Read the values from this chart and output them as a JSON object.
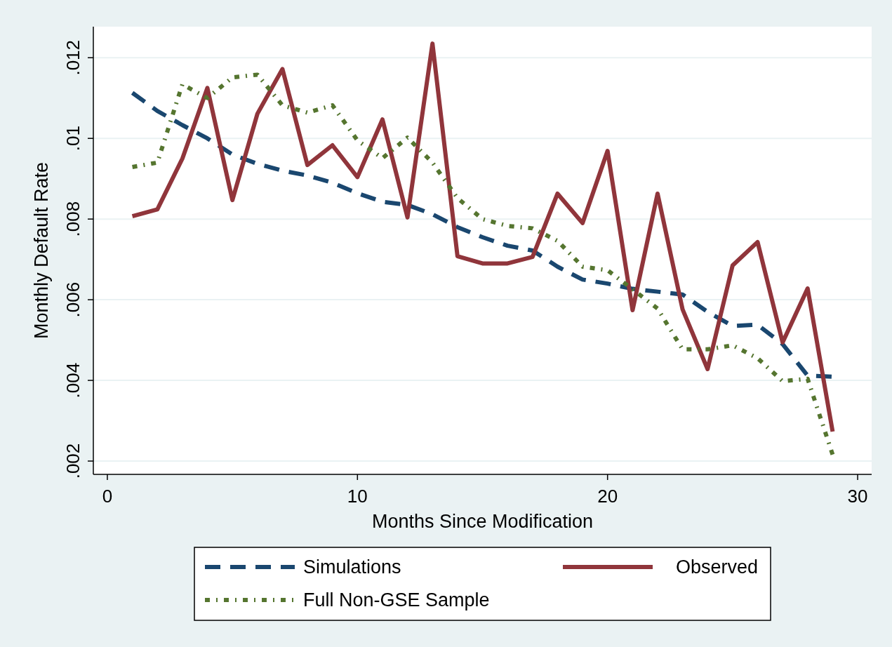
{
  "chart_data": {
    "type": "line",
    "xlabel": "Months Since Modification",
    "ylabel": "Monthly Default Rate",
    "x": [
      1,
      2,
      3,
      4,
      5,
      6,
      7,
      8,
      9,
      10,
      11,
      12,
      13,
      14,
      15,
      16,
      17,
      18,
      19,
      20,
      21,
      22,
      23,
      24,
      25,
      26,
      27,
      28,
      29
    ],
    "series": [
      {
        "name": "Simulations",
        "color": "#1a476f",
        "line_style": "dashed",
        "values": [
          0.01113,
          0.01068,
          0.01033,
          0.01,
          0.0096,
          0.00937,
          0.0092,
          0.00908,
          0.0089,
          0.00864,
          0.00843,
          0.00835,
          0.00812,
          0.0078,
          0.00755,
          0.00734,
          0.00722,
          0.00682,
          0.0065,
          0.0064,
          0.00627,
          0.0062,
          0.00613,
          0.0057,
          0.00535,
          0.00538,
          0.0049,
          0.00412,
          0.00409
        ]
      },
      {
        "name": "Observed",
        "color": "#90353b",
        "line_style": "solid",
        "values": [
          0.00807,
          0.00824,
          0.0095,
          0.01125,
          0.00847,
          0.01061,
          0.01172,
          0.00934,
          0.00983,
          0.00904,
          0.01047,
          0.00804,
          0.01235,
          0.00708,
          0.0069,
          0.0069,
          0.00706,
          0.00863,
          0.0079,
          0.00969,
          0.00574,
          0.00863,
          0.00576,
          0.00428,
          0.00685,
          0.00743,
          0.00494,
          0.00628,
          0.00273
        ]
      },
      {
        "name": "Full Non-GSE Sample",
        "color": "#55752f",
        "line_style": "dotted",
        "values": [
          0.00929,
          0.0094,
          0.01134,
          0.011,
          0.01151,
          0.01158,
          0.01082,
          0.01064,
          0.01082,
          0.00995,
          0.00951,
          0.01002,
          0.0094,
          0.00852,
          0.008,
          0.00783,
          0.00777,
          0.00746,
          0.00682,
          0.00673,
          0.00626,
          0.00578,
          0.00477,
          0.00477,
          0.00487,
          0.00455,
          0.00398,
          0.00404,
          0.00216
        ]
      }
    ],
    "xlim": [
      -0.56,
      30.56
    ],
    "xticks": [
      0,
      10,
      20,
      30
    ],
    "ylim": [
      0.00167,
      0.01277
    ],
    "yticks": [
      {
        "value": 0.002,
        "label": ".002"
      },
      {
        "value": 0.004,
        "label": ".004"
      },
      {
        "value": 0.006,
        "label": ".006"
      },
      {
        "value": 0.008,
        "label": ".008"
      },
      {
        "value": 0.01,
        "label": ".01"
      },
      {
        "value": 0.012,
        "label": ".012"
      }
    ],
    "grid": "y",
    "legend": "bottom"
  }
}
